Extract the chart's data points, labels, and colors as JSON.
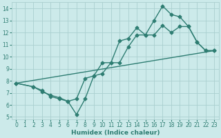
{
  "line1_x": [
    0,
    2,
    3,
    4,
    5,
    6,
    7,
    8,
    9,
    10,
    11,
    12,
    13,
    14,
    15,
    16,
    17,
    18,
    19,
    20,
    21,
    22,
    23
  ],
  "line1_y": [
    7.8,
    7.5,
    7.2,
    6.7,
    6.5,
    6.3,
    5.2,
    6.5,
    8.4,
    9.5,
    9.5,
    11.3,
    11.5,
    12.4,
    11.8,
    13.0,
    14.2,
    13.5,
    13.3,
    12.5,
    11.2,
    10.5,
    10.5
  ],
  "line2_x": [
    0,
    2,
    3,
    4,
    5,
    6,
    7,
    8,
    9,
    10,
    11,
    12,
    13,
    14,
    15,
    16,
    17,
    18,
    19,
    20,
    21,
    22,
    23
  ],
  "line2_y": [
    7.8,
    7.5,
    7.1,
    6.8,
    6.6,
    6.3,
    6.5,
    8.2,
    8.4,
    8.6,
    9.5,
    9.5,
    10.8,
    11.8,
    11.8,
    11.8,
    12.6,
    12.0,
    12.5,
    12.5,
    11.2,
    10.5,
    10.5
  ],
  "line3_x": [
    0,
    23
  ],
  "line3_y": [
    7.8,
    10.5
  ],
  "color": "#2e7d72",
  "bg_color": "#cceaea",
  "grid_color": "#aacfcf",
  "xlim": [
    -0.5,
    23.5
  ],
  "ylim": [
    4.8,
    14.5
  ],
  "xlabel": "Humidex (Indice chaleur)",
  "xticks": [
    0,
    1,
    2,
    3,
    4,
    5,
    6,
    7,
    8,
    9,
    10,
    11,
    12,
    13,
    14,
    15,
    16,
    17,
    18,
    19,
    20,
    21,
    22,
    23
  ],
  "yticks": [
    5,
    6,
    7,
    8,
    9,
    10,
    11,
    12,
    13,
    14
  ],
  "marker": "D",
  "markersize": 2.5,
  "linewidth": 1.0,
  "tick_fontsize": 5.5,
  "xlabel_fontsize": 6.5
}
